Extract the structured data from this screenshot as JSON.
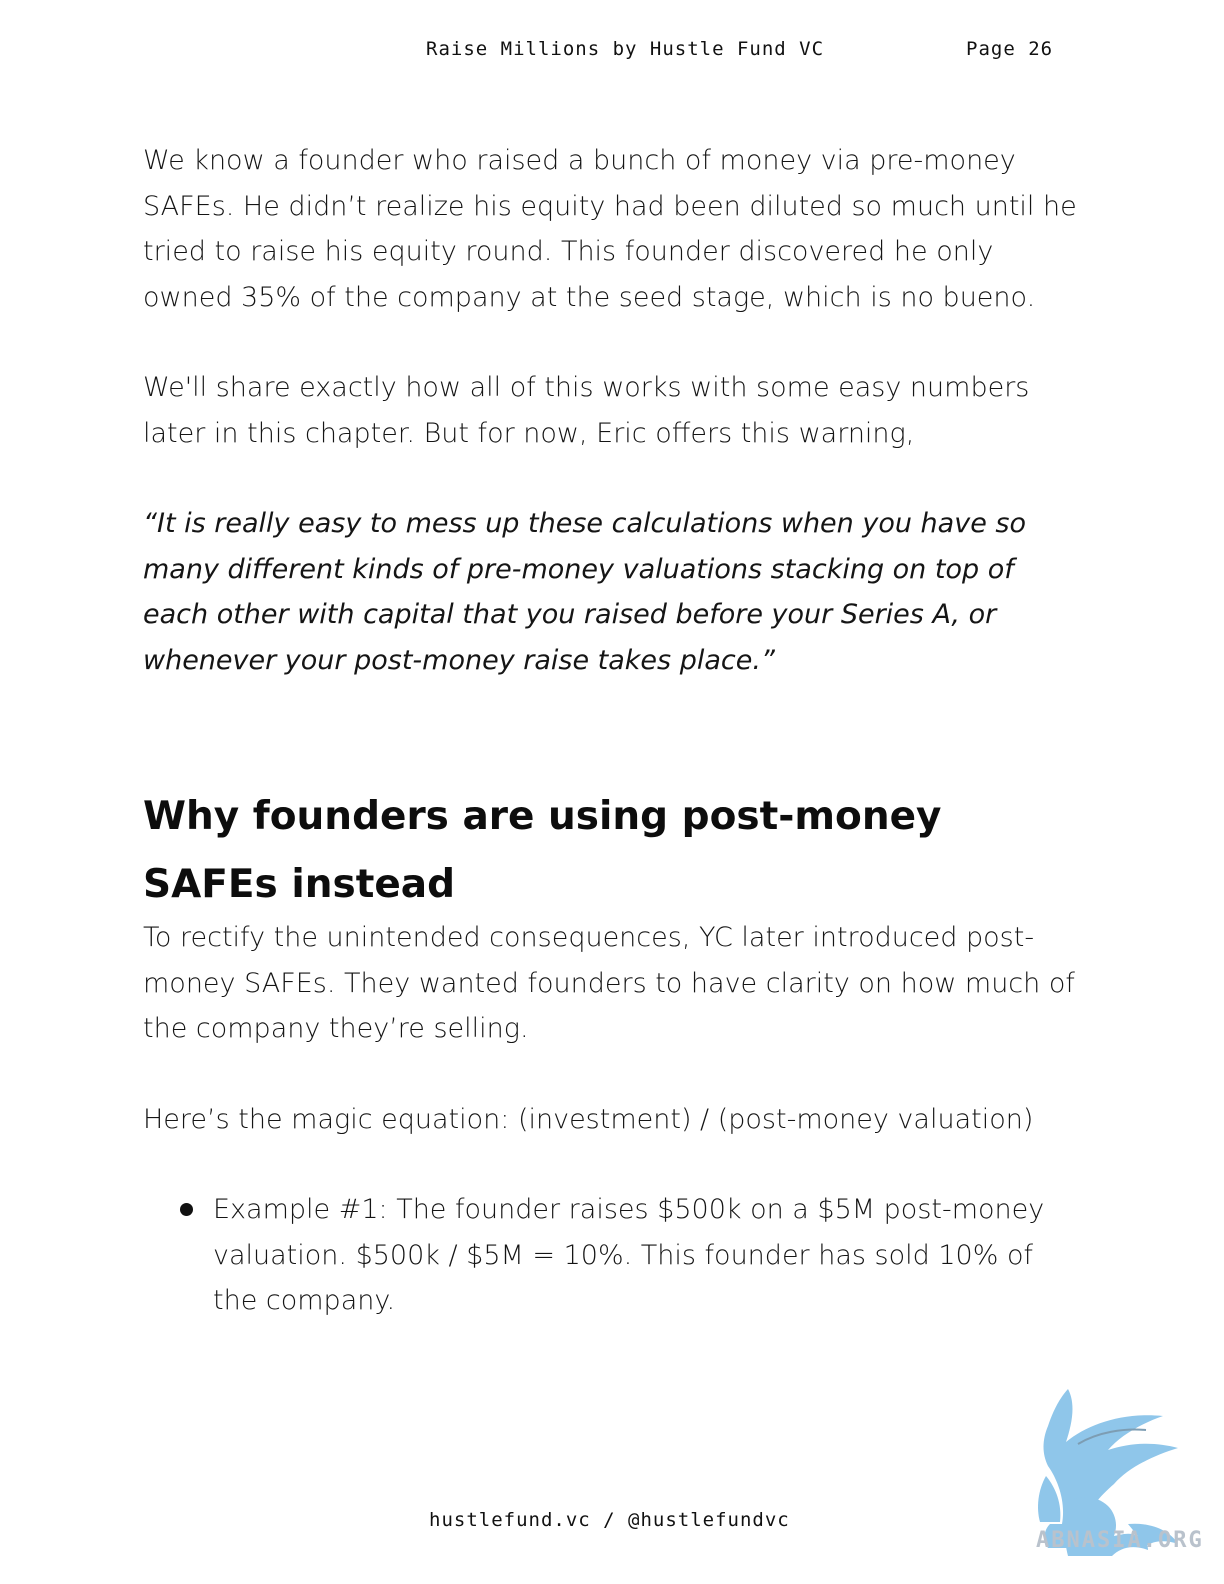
{
  "header": {
    "title": "Raise Millions by Hustle Fund VC",
    "page": "Page 26"
  },
  "content": {
    "paragraph_1": "We know a founder who raised a bunch of money via pre-money SAFEs. He didn’t realize his equity had been diluted so much until he tried to raise his equity round. This founder discovered he only owned 35% of the company at the seed stage, which is no bueno.",
    "paragraph_2": "We'll share exactly how all of this works with some easy numbers later in this chapter. But for now, Eric offers this warning,",
    "quote": "“It is really easy to mess up these calculations when you have so many different kinds of pre-money valuations stacking on top of each other with capital that you raised before your Series A, or whenever your post-money raise takes place.”",
    "heading": "Why founders are using post-money SAFEs instead",
    "paragraph_3": "To rectify the unintended consequences, YC later introduced post-money SAFEs. They wanted founders to have clarity on how much of the company they’re selling.",
    "paragraph_4": "Here’s the magic equation: (investment) / (post-money valuation)",
    "examples": [
      "Example #1: The founder raises $500k on a $5M post-money valuation. $500k / $5M = 10%. This founder has sold 10% of the company."
    ]
  },
  "footer": {
    "text": "hustlefund.vc / @hustlefundvc"
  },
  "watermark": {
    "text": "ABNASIA.ORG",
    "icon": "griffin-logo-icon",
    "color": "#8fc6ea"
  }
}
